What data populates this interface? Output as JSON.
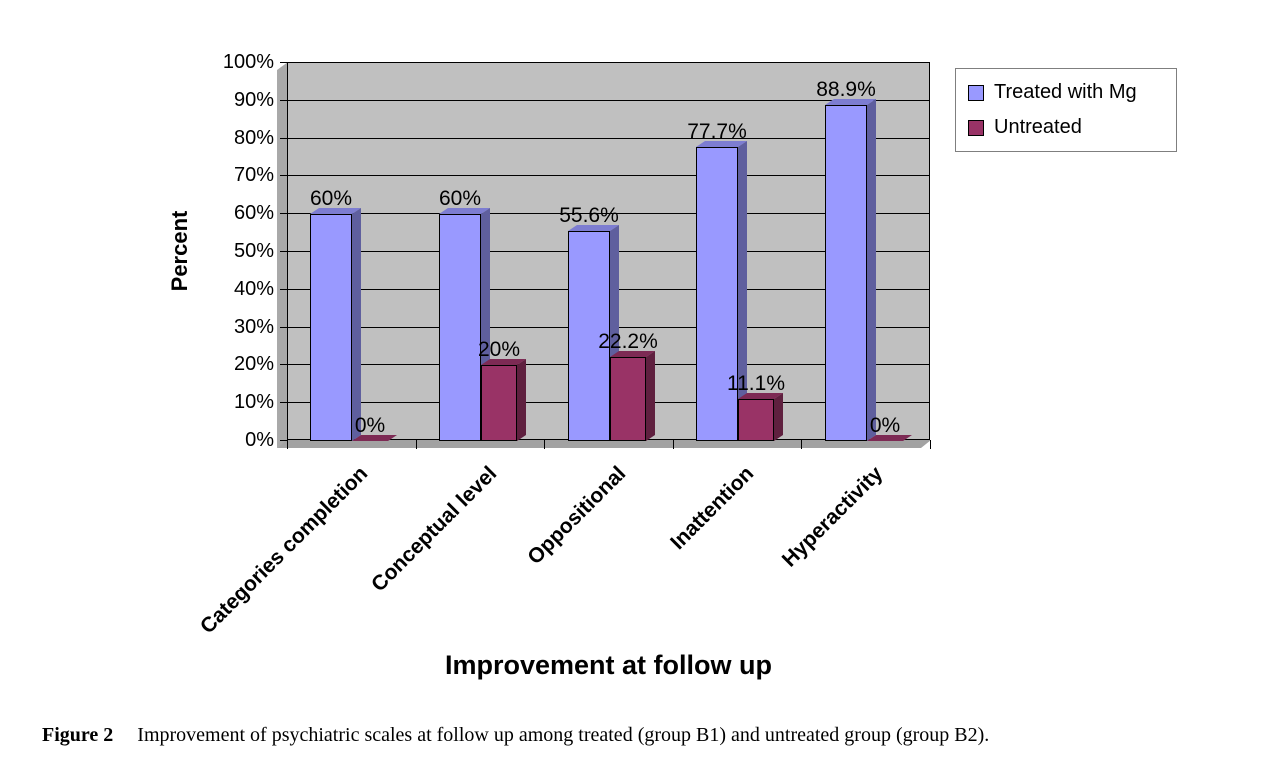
{
  "figure": {
    "caption_label": "Figure 2",
    "caption_text": "Improvement of psychiatric scales at follow up among treated (group B1) and untreated group (group B2)."
  },
  "chart_data": {
    "type": "bar",
    "title": "",
    "xlabel": "Improvement at follow up",
    "ylabel": "Percent",
    "ylim": [
      0,
      100
    ],
    "ytick_step": 10,
    "ytick_suffix": "%",
    "grid": true,
    "legend_position": "top-right",
    "plot_bg": "#c0c0c0",
    "categories": [
      "Categories completion",
      "Conceptual level",
      "Oppositional",
      "Inattention",
      "Hyperactivity"
    ],
    "series": [
      {
        "name": "Treated with Mg",
        "color": "#9999ff",
        "values": [
          60,
          60,
          55.6,
          77.7,
          88.9
        ],
        "labels": [
          "60%",
          "60%",
          "55.6%",
          "77.7%",
          "88.9%"
        ]
      },
      {
        "name": "Untreated",
        "color": "#993366",
        "values": [
          0,
          20,
          22.2,
          11.1,
          0
        ],
        "labels": [
          "0%",
          "20%",
          "22.2%",
          "11.1%",
          "0%"
        ]
      }
    ]
  }
}
